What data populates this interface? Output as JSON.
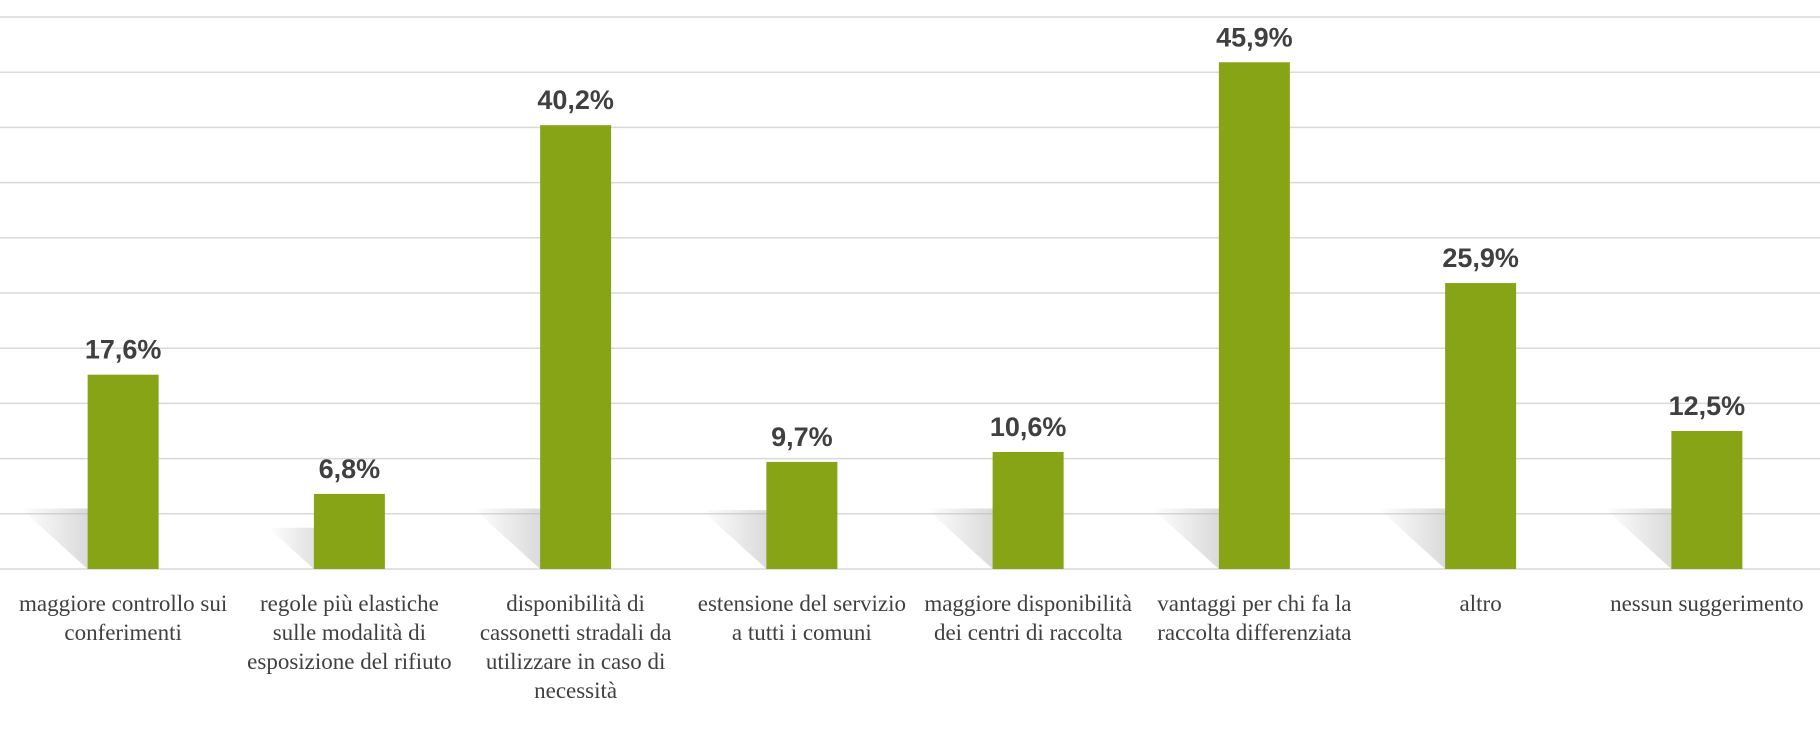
{
  "chart_data": {
    "type": "bar",
    "categories": [
      "maggiore controllo sui conferimenti",
      "regole più elastiche sulle modalità di esposizione del rifiuto",
      "disponibilità di cassonetti stradali da utilizzare in caso di necessità",
      "estensione del servizio a tutti i comuni",
      "maggiore disponibilità dei centri di raccolta",
      "vantaggi per chi fa la raccolta differenziata",
      "altro",
      "nessun suggerimento"
    ],
    "values": [
      17.6,
      6.8,
      40.2,
      9.7,
      10.6,
      45.9,
      25.9,
      12.5
    ],
    "value_labels": [
      "17,6%",
      "6,8%",
      "40,2%",
      "9,7%",
      "10,6%",
      "45,9%",
      "25,9%",
      "12,5%"
    ],
    "color": "#87a416",
    "ylim": [
      0,
      50
    ],
    "yticks": [
      0,
      5,
      10,
      15,
      20,
      25,
      30,
      35,
      40,
      45,
      50
    ],
    "grid": true
  }
}
